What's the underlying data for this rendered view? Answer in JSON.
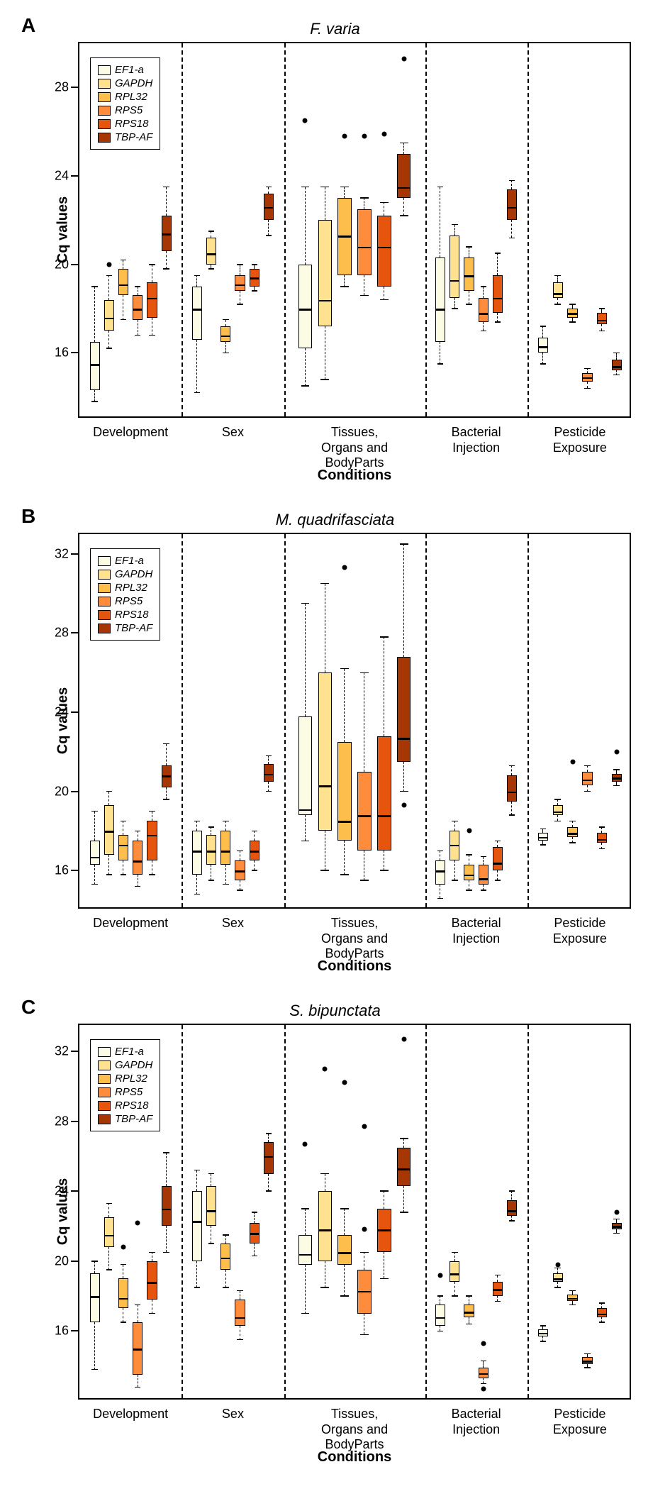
{
  "colors": {
    "series": [
      "#fcfbe3",
      "#fee28f",
      "#fdbe4b",
      "#fd8d3c",
      "#e6550d",
      "#a63603"
    ],
    "median": "#000000",
    "border": "#000000",
    "outlier": "#000000",
    "background": "#ffffff"
  },
  "legend": {
    "items": [
      "EF1-a",
      "GAPDH",
      "RPL32",
      "RPS5",
      "RPS18",
      "TBP-AF"
    ]
  },
  "axes": {
    "ylabel": "Cq values",
    "xlabel": "Conditions",
    "conditions": [
      "Development",
      "Sex",
      "Tissues,\nOrgans and\nBodyParts",
      "Bacterial\nInjection",
      "Pesticide\nExposure"
    ]
  },
  "panels": [
    {
      "letter": "A",
      "title": "F. varia",
      "ylim": [
        13,
        30
      ],
      "yticks": [
        16,
        20,
        24,
        28
      ],
      "groupWidths": [
        0.185,
        0.185,
        0.255,
        0.185,
        0.19
      ],
      "boxes": [
        {
          "g": 0,
          "s": 0,
          "q1": 14.3,
          "med": 15.5,
          "q3": 16.5,
          "wl": 13.8,
          "wh": 19.0,
          "out": []
        },
        {
          "g": 0,
          "s": 1,
          "q1": 17.0,
          "med": 17.6,
          "q3": 18.4,
          "wl": 16.2,
          "wh": 19.5,
          "out": [
            20.0
          ]
        },
        {
          "g": 0,
          "s": 2,
          "q1": 18.6,
          "med": 19.1,
          "q3": 19.8,
          "wl": 17.5,
          "wh": 20.2,
          "out": []
        },
        {
          "g": 0,
          "s": 3,
          "q1": 17.5,
          "med": 18.0,
          "q3": 18.6,
          "wl": 16.8,
          "wh": 19.0,
          "out": []
        },
        {
          "g": 0,
          "s": 4,
          "q1": 17.6,
          "med": 18.5,
          "q3": 19.2,
          "wl": 16.8,
          "wh": 20.0,
          "out": []
        },
        {
          "g": 0,
          "s": 5,
          "q1": 20.6,
          "med": 21.4,
          "q3": 22.2,
          "wl": 19.8,
          "wh": 23.5,
          "out": []
        },
        {
          "g": 1,
          "s": 0,
          "q1": 16.6,
          "med": 18.0,
          "q3": 19.0,
          "wl": 14.2,
          "wh": 19.5,
          "out": []
        },
        {
          "g": 1,
          "s": 1,
          "q1": 20.0,
          "med": 20.5,
          "q3": 21.2,
          "wl": 19.8,
          "wh": 21.5,
          "out": []
        },
        {
          "g": 1,
          "s": 2,
          "q1": 16.5,
          "med": 16.8,
          "q3": 17.2,
          "wl": 16.0,
          "wh": 17.5,
          "out": []
        },
        {
          "g": 1,
          "s": 3,
          "q1": 18.8,
          "med": 19.1,
          "q3": 19.5,
          "wl": 18.2,
          "wh": 20.0,
          "out": []
        },
        {
          "g": 1,
          "s": 4,
          "q1": 19.0,
          "med": 19.4,
          "q3": 19.8,
          "wl": 18.8,
          "wh": 20.0,
          "out": []
        },
        {
          "g": 1,
          "s": 5,
          "q1": 22.0,
          "med": 22.6,
          "q3": 23.2,
          "wl": 21.3,
          "wh": 23.5,
          "out": []
        },
        {
          "g": 2,
          "s": 0,
          "q1": 16.2,
          "med": 18.0,
          "q3": 20.0,
          "wl": 14.5,
          "wh": 23.5,
          "out": [
            26.5
          ]
        },
        {
          "g": 2,
          "s": 1,
          "q1": 17.2,
          "med": 18.4,
          "q3": 22.0,
          "wl": 14.8,
          "wh": 23.5,
          "out": []
        },
        {
          "g": 2,
          "s": 2,
          "q1": 19.5,
          "med": 21.3,
          "q3": 23.0,
          "wl": 19.0,
          "wh": 23.5,
          "out": [
            25.8
          ]
        },
        {
          "g": 2,
          "s": 3,
          "q1": 19.5,
          "med": 20.8,
          "q3": 22.5,
          "wl": 18.6,
          "wh": 23.0,
          "out": [
            25.8
          ]
        },
        {
          "g": 2,
          "s": 4,
          "q1": 19.0,
          "med": 20.8,
          "q3": 22.2,
          "wl": 18.4,
          "wh": 22.8,
          "out": [
            25.9
          ]
        },
        {
          "g": 2,
          "s": 5,
          "q1": 23.0,
          "med": 23.5,
          "q3": 25.0,
          "wl": 22.2,
          "wh": 25.5,
          "out": [
            29.3
          ]
        },
        {
          "g": 3,
          "s": 0,
          "q1": 16.5,
          "med": 18.0,
          "q3": 20.3,
          "wl": 15.5,
          "wh": 23.5,
          "out": []
        },
        {
          "g": 3,
          "s": 1,
          "q1": 18.5,
          "med": 19.3,
          "q3": 21.3,
          "wl": 18.0,
          "wh": 21.8,
          "out": []
        },
        {
          "g": 3,
          "s": 2,
          "q1": 18.8,
          "med": 19.5,
          "q3": 20.3,
          "wl": 18.2,
          "wh": 20.8,
          "out": []
        },
        {
          "g": 3,
          "s": 3,
          "q1": 17.4,
          "med": 17.8,
          "q3": 18.5,
          "wl": 17.0,
          "wh": 19.0,
          "out": []
        },
        {
          "g": 3,
          "s": 4,
          "q1": 17.8,
          "med": 18.5,
          "q3": 19.5,
          "wl": 17.4,
          "wh": 20.5,
          "out": []
        },
        {
          "g": 3,
          "s": 5,
          "q1": 22.0,
          "med": 22.6,
          "q3": 23.4,
          "wl": 21.2,
          "wh": 23.8,
          "out": []
        },
        {
          "g": 4,
          "s": 0,
          "q1": 16.0,
          "med": 16.3,
          "q3": 16.7,
          "wl": 15.5,
          "wh": 17.2,
          "out": []
        },
        {
          "g": 4,
          "s": 1,
          "q1": 18.5,
          "med": 18.7,
          "q3": 19.2,
          "wl": 18.2,
          "wh": 19.5,
          "out": []
        },
        {
          "g": 4,
          "s": 2,
          "q1": 17.6,
          "med": 17.8,
          "q3": 18.0,
          "wl": 17.4,
          "wh": 18.2,
          "out": []
        },
        {
          "g": 4,
          "s": 3,
          "q1": 14.7,
          "med": 14.9,
          "q3": 15.1,
          "wl": 14.4,
          "wh": 15.3,
          "out": []
        },
        {
          "g": 4,
          "s": 4,
          "q1": 17.3,
          "med": 17.5,
          "q3": 17.8,
          "wl": 17.0,
          "wh": 18.0,
          "out": []
        },
        {
          "g": 4,
          "s": 5,
          "q1": 15.2,
          "med": 15.4,
          "q3": 15.7,
          "wl": 15.0,
          "wh": 16.0,
          "out": []
        }
      ]
    },
    {
      "letter": "B",
      "title": "M. quadrifasciata",
      "ylim": [
        14,
        33
      ],
      "yticks": [
        16,
        20,
        24,
        28,
        32
      ],
      "groupWidths": [
        0.185,
        0.185,
        0.255,
        0.185,
        0.19
      ],
      "boxes": [
        {
          "g": 0,
          "s": 0,
          "q1": 16.3,
          "med": 16.7,
          "q3": 17.5,
          "wl": 15.3,
          "wh": 19.0,
          "out": []
        },
        {
          "g": 0,
          "s": 1,
          "q1": 16.8,
          "med": 18.0,
          "q3": 19.3,
          "wl": 15.8,
          "wh": 20.0,
          "out": []
        },
        {
          "g": 0,
          "s": 2,
          "q1": 16.5,
          "med": 17.3,
          "q3": 17.8,
          "wl": 15.8,
          "wh": 18.5,
          "out": []
        },
        {
          "g": 0,
          "s": 3,
          "q1": 15.8,
          "med": 16.5,
          "q3": 17.5,
          "wl": 15.2,
          "wh": 18.0,
          "out": []
        },
        {
          "g": 0,
          "s": 4,
          "q1": 16.5,
          "med": 17.8,
          "q3": 18.5,
          "wl": 15.8,
          "wh": 19.0,
          "out": []
        },
        {
          "g": 0,
          "s": 5,
          "q1": 20.2,
          "med": 20.8,
          "q3": 21.3,
          "wl": 19.6,
          "wh": 22.4,
          "out": []
        },
        {
          "g": 1,
          "s": 0,
          "q1": 15.8,
          "med": 17.0,
          "q3": 18.0,
          "wl": 14.8,
          "wh": 18.5,
          "out": []
        },
        {
          "g": 1,
          "s": 1,
          "q1": 16.3,
          "med": 17.0,
          "q3": 17.8,
          "wl": 15.5,
          "wh": 18.2,
          "out": []
        },
        {
          "g": 1,
          "s": 2,
          "q1": 16.3,
          "med": 17.0,
          "q3": 18.0,
          "wl": 15.3,
          "wh": 18.5,
          "out": []
        },
        {
          "g": 1,
          "s": 3,
          "q1": 15.5,
          "med": 16.0,
          "q3": 16.5,
          "wl": 15.0,
          "wh": 17.0,
          "out": []
        },
        {
          "g": 1,
          "s": 4,
          "q1": 16.5,
          "med": 17.0,
          "q3": 17.5,
          "wl": 16.0,
          "wh": 18.0,
          "out": []
        },
        {
          "g": 1,
          "s": 5,
          "q1": 20.5,
          "med": 20.9,
          "q3": 21.4,
          "wl": 20.0,
          "wh": 21.8,
          "out": []
        },
        {
          "g": 2,
          "s": 0,
          "q1": 18.8,
          "med": 19.1,
          "q3": 23.8,
          "wl": 17.5,
          "wh": 29.5,
          "out": []
        },
        {
          "g": 2,
          "s": 1,
          "q1": 18.0,
          "med": 20.3,
          "q3": 26.0,
          "wl": 16.0,
          "wh": 30.5,
          "out": []
        },
        {
          "g": 2,
          "s": 2,
          "q1": 17.5,
          "med": 18.5,
          "q3": 22.5,
          "wl": 15.8,
          "wh": 26.2,
          "out": [
            31.3
          ]
        },
        {
          "g": 2,
          "s": 3,
          "q1": 17.0,
          "med": 18.8,
          "q3": 21.0,
          "wl": 15.5,
          "wh": 26.0,
          "out": []
        },
        {
          "g": 2,
          "s": 4,
          "q1": 17.0,
          "med": 18.8,
          "q3": 22.8,
          "wl": 16.0,
          "wh": 27.8,
          "out": []
        },
        {
          "g": 2,
          "s": 5,
          "q1": 21.5,
          "med": 22.7,
          "q3": 26.8,
          "wl": 20.0,
          "wh": 32.5,
          "out": [
            19.3
          ]
        },
        {
          "g": 3,
          "s": 0,
          "q1": 15.3,
          "med": 16.0,
          "q3": 16.5,
          "wl": 14.6,
          "wh": 17.0,
          "out": []
        },
        {
          "g": 3,
          "s": 1,
          "q1": 16.5,
          "med": 17.3,
          "q3": 18.0,
          "wl": 15.5,
          "wh": 18.5,
          "out": []
        },
        {
          "g": 3,
          "s": 2,
          "q1": 15.5,
          "med": 15.8,
          "q3": 16.3,
          "wl": 15.0,
          "wh": 16.8,
          "out": [
            18.0
          ]
        },
        {
          "g": 3,
          "s": 3,
          "q1": 15.3,
          "med": 15.6,
          "q3": 16.3,
          "wl": 15.0,
          "wh": 16.7,
          "out": []
        },
        {
          "g": 3,
          "s": 4,
          "q1": 16.0,
          "med": 16.4,
          "q3": 17.2,
          "wl": 15.5,
          "wh": 17.5,
          "out": []
        },
        {
          "g": 3,
          "s": 5,
          "q1": 19.5,
          "med": 20.0,
          "q3": 20.8,
          "wl": 18.8,
          "wh": 21.3,
          "out": []
        },
        {
          "g": 4,
          "s": 0,
          "q1": 17.5,
          "med": 17.7,
          "q3": 17.9,
          "wl": 17.3,
          "wh": 18.1,
          "out": []
        },
        {
          "g": 4,
          "s": 1,
          "q1": 18.8,
          "med": 19.0,
          "q3": 19.3,
          "wl": 18.5,
          "wh": 19.6,
          "out": []
        },
        {
          "g": 4,
          "s": 2,
          "q1": 17.7,
          "med": 17.9,
          "q3": 18.2,
          "wl": 17.4,
          "wh": 18.5,
          "out": [
            21.5
          ]
        },
        {
          "g": 4,
          "s": 3,
          "q1": 20.3,
          "med": 20.6,
          "q3": 21.0,
          "wl": 20.0,
          "wh": 21.3,
          "out": []
        },
        {
          "g": 4,
          "s": 4,
          "q1": 17.4,
          "med": 17.6,
          "q3": 17.9,
          "wl": 17.1,
          "wh": 18.2,
          "out": []
        },
        {
          "g": 4,
          "s": 5,
          "q1": 20.5,
          "med": 20.7,
          "q3": 20.9,
          "wl": 20.3,
          "wh": 21.1,
          "out": [
            22.0
          ]
        }
      ]
    },
    {
      "letter": "C",
      "title": "S. bipunctata",
      "ylim": [
        12,
        33.5
      ],
      "yticks": [
        16,
        20,
        24,
        28,
        32
      ],
      "groupWidths": [
        0.185,
        0.185,
        0.255,
        0.185,
        0.19
      ],
      "boxes": [
        {
          "g": 0,
          "s": 0,
          "q1": 16.5,
          "med": 18.0,
          "q3": 19.3,
          "wl": 13.8,
          "wh": 20.0,
          "out": []
        },
        {
          "g": 0,
          "s": 1,
          "q1": 20.8,
          "med": 21.5,
          "q3": 22.5,
          "wl": 19.5,
          "wh": 23.3,
          "out": []
        },
        {
          "g": 0,
          "s": 2,
          "q1": 17.3,
          "med": 17.9,
          "q3": 19.0,
          "wl": 16.5,
          "wh": 19.8,
          "out": [
            20.8
          ]
        },
        {
          "g": 0,
          "s": 3,
          "q1": 13.5,
          "med": 15.0,
          "q3": 16.5,
          "wl": 12.8,
          "wh": 17.5,
          "out": [
            22.2
          ]
        },
        {
          "g": 0,
          "s": 4,
          "q1": 17.8,
          "med": 18.8,
          "q3": 20.0,
          "wl": 17.0,
          "wh": 20.5,
          "out": []
        },
        {
          "g": 0,
          "s": 5,
          "q1": 22.0,
          "med": 23.0,
          "q3": 24.3,
          "wl": 20.5,
          "wh": 26.2,
          "out": []
        },
        {
          "g": 1,
          "s": 0,
          "q1": 20.0,
          "med": 22.3,
          "q3": 24.0,
          "wl": 18.5,
          "wh": 25.2,
          "out": []
        },
        {
          "g": 1,
          "s": 1,
          "q1": 22.0,
          "med": 22.9,
          "q3": 24.3,
          "wl": 21.0,
          "wh": 25.0,
          "out": []
        },
        {
          "g": 1,
          "s": 2,
          "q1": 19.5,
          "med": 20.2,
          "q3": 21.0,
          "wl": 18.5,
          "wh": 21.5,
          "out": []
        },
        {
          "g": 1,
          "s": 3,
          "q1": 16.3,
          "med": 16.8,
          "q3": 17.8,
          "wl": 15.5,
          "wh": 18.3,
          "out": []
        },
        {
          "g": 1,
          "s": 4,
          "q1": 21.0,
          "med": 21.6,
          "q3": 22.2,
          "wl": 20.3,
          "wh": 22.8,
          "out": []
        },
        {
          "g": 1,
          "s": 5,
          "q1": 25.0,
          "med": 26.0,
          "q3": 26.8,
          "wl": 24.0,
          "wh": 27.3,
          "out": []
        },
        {
          "g": 2,
          "s": 0,
          "q1": 19.8,
          "med": 20.4,
          "q3": 21.5,
          "wl": 17.0,
          "wh": 23.0,
          "out": [
            26.7
          ]
        },
        {
          "g": 2,
          "s": 1,
          "q1": 20.0,
          "med": 21.8,
          "q3": 24.0,
          "wl": 18.5,
          "wh": 25.0,
          "out": [
            31.0
          ]
        },
        {
          "g": 2,
          "s": 2,
          "q1": 19.8,
          "med": 20.5,
          "q3": 21.5,
          "wl": 18.0,
          "wh": 23.0,
          "out": [
            30.2
          ]
        },
        {
          "g": 2,
          "s": 3,
          "q1": 17.0,
          "med": 18.3,
          "q3": 19.5,
          "wl": 15.8,
          "wh": 20.5,
          "out": [
            21.8,
            27.7
          ]
        },
        {
          "g": 2,
          "s": 4,
          "q1": 20.5,
          "med": 21.8,
          "q3": 23.0,
          "wl": 19.0,
          "wh": 24.0,
          "out": []
        },
        {
          "g": 2,
          "s": 5,
          "q1": 24.3,
          "med": 25.3,
          "q3": 26.5,
          "wl": 22.8,
          "wh": 27.0,
          "out": [
            32.7
          ]
        },
        {
          "g": 3,
          "s": 0,
          "q1": 16.3,
          "med": 16.8,
          "q3": 17.5,
          "wl": 16.0,
          "wh": 18.0,
          "out": [
            19.2
          ]
        },
        {
          "g": 3,
          "s": 1,
          "q1": 18.8,
          "med": 19.3,
          "q3": 20.0,
          "wl": 18.0,
          "wh": 20.5,
          "out": []
        },
        {
          "g": 3,
          "s": 2,
          "q1": 16.8,
          "med": 17.1,
          "q3": 17.5,
          "wl": 16.4,
          "wh": 18.0,
          "out": []
        },
        {
          "g": 3,
          "s": 3,
          "q1": 13.3,
          "med": 13.6,
          "q3": 13.9,
          "wl": 13.0,
          "wh": 14.3,
          "out": [
            12.7,
            15.3
          ]
        },
        {
          "g": 3,
          "s": 4,
          "q1": 18.0,
          "med": 18.4,
          "q3": 18.8,
          "wl": 17.7,
          "wh": 19.2,
          "out": []
        },
        {
          "g": 3,
          "s": 5,
          "q1": 22.6,
          "med": 22.9,
          "q3": 23.5,
          "wl": 22.3,
          "wh": 24.0,
          "out": []
        },
        {
          "g": 4,
          "s": 0,
          "q1": 15.7,
          "med": 15.9,
          "q3": 16.1,
          "wl": 15.4,
          "wh": 16.3,
          "out": []
        },
        {
          "g": 4,
          "s": 1,
          "q1": 18.8,
          "med": 19.0,
          "q3": 19.3,
          "wl": 18.5,
          "wh": 19.6,
          "out": [
            19.8
          ]
        },
        {
          "g": 4,
          "s": 2,
          "q1": 17.7,
          "med": 17.9,
          "q3": 18.1,
          "wl": 17.5,
          "wh": 18.3,
          "out": []
        },
        {
          "g": 4,
          "s": 3,
          "q1": 14.1,
          "med": 14.3,
          "q3": 14.5,
          "wl": 13.9,
          "wh": 14.7,
          "out": []
        },
        {
          "g": 4,
          "s": 4,
          "q1": 16.8,
          "med": 17.0,
          "q3": 17.3,
          "wl": 16.5,
          "wh": 17.6,
          "out": []
        },
        {
          "g": 4,
          "s": 5,
          "q1": 21.8,
          "med": 22.0,
          "q3": 22.2,
          "wl": 21.6,
          "wh": 22.4,
          "out": [
            22.8
          ]
        }
      ]
    }
  ]
}
